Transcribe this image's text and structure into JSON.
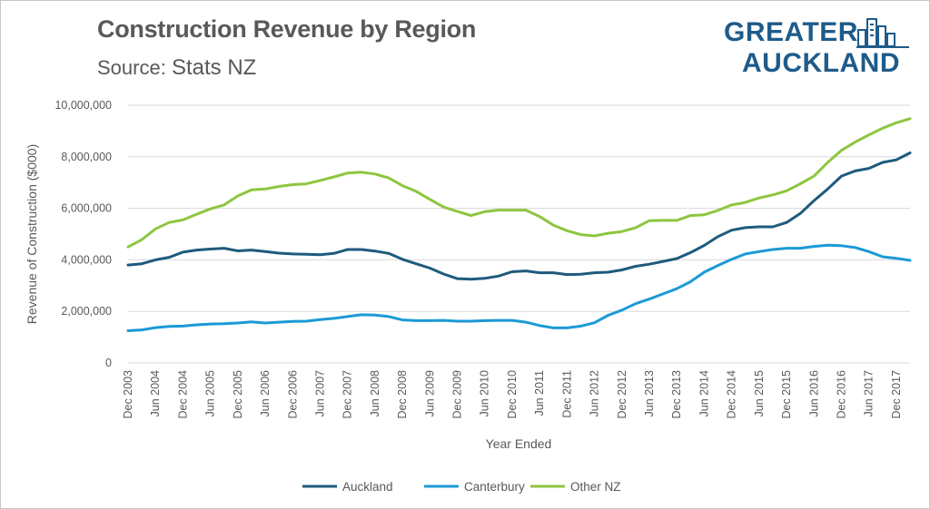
{
  "header": {
    "title": "Construction Revenue by Region",
    "subtitle_prefix": "Source:",
    "subtitle_source": "Stats NZ"
  },
  "logo": {
    "line1": "GREATER",
    "line2": "AUCKLAND",
    "color": "#1e5b8a"
  },
  "chart_data": {
    "type": "line",
    "title": "Construction Revenue by Region",
    "xlabel": "Year Ended",
    "ylabel": "Revenue of Construction ($000)",
    "ylim": [
      0,
      10000000
    ],
    "yticks": [
      0,
      2000000,
      4000000,
      6000000,
      8000000,
      10000000
    ],
    "ytick_labels": [
      "0",
      "2,000,000",
      "4,000,000",
      "6,000,000",
      "8,000,000",
      "10,000,000"
    ],
    "grid": true,
    "legend": "bottom",
    "x": [
      "Dec 2003",
      "Mar 2004",
      "Jun 2004",
      "Sep 2004",
      "Dec 2004",
      "Mar 2005",
      "Jun 2005",
      "Sep 2005",
      "Dec 2005",
      "Mar 2006",
      "Jun 2006",
      "Sep 2006",
      "Dec 2006",
      "Mar 2007",
      "Jun 2007",
      "Sep 2007",
      "Dec 2007",
      "Mar 2008",
      "Jun 2008",
      "Sep 2008",
      "Dec 2008",
      "Mar 2009",
      "Jun 2009",
      "Sep 2009",
      "Dec 2009",
      "Mar 2010",
      "Jun 2010",
      "Sep 2010",
      "Dec 2010",
      "Mar 2011",
      "Jun 2011",
      "Sep 2011",
      "Dec 2011",
      "Mar 2012",
      "Jun 2012",
      "Sep 2012",
      "Dec 2012",
      "Mar 2013",
      "Jun 2013",
      "Sep 2013",
      "Dec 2013",
      "Mar 2014",
      "Jun 2014",
      "Sep 2014",
      "Dec 2014",
      "Mar 2015",
      "Jun 2015",
      "Sep 2015",
      "Dec 2015",
      "Mar 2016",
      "Jun 2016",
      "Sep 2016",
      "Dec 2016",
      "Mar 2017",
      "Jun 2017",
      "Sep 2017",
      "Dec 2017",
      "Mar 2018"
    ],
    "tick_labels": [
      "Dec 2003",
      "Jun 2004",
      "Dec 2004",
      "Jun 2005",
      "Dec 2005",
      "Jun 2006",
      "Dec 2006",
      "Jun 2007",
      "Dec 2007",
      "Jun 2008",
      "Dec 2008",
      "Jun 2009",
      "Dec 2009",
      "Jun 2010",
      "Dec 2010",
      "Jun 2011",
      "Dec 2011",
      "Jun 2012",
      "Dec 2012",
      "Jun 2013",
      "Dec 2013",
      "Jun 2014",
      "Dec 2014",
      "Jun 2015",
      "Dec 2015",
      "Jun 2016",
      "Dec 2016",
      "Jun 2017",
      "Dec 2017"
    ],
    "series": [
      {
        "name": "Auckland",
        "color": "#1f5a7c",
        "values": [
          3800000,
          3850000,
          4000000,
          4100000,
          4300000,
          4380000,
          4420000,
          4450000,
          4350000,
          4380000,
          4320000,
          4260000,
          4230000,
          4220000,
          4200000,
          4250000,
          4400000,
          4400000,
          4340000,
          4250000,
          4020000,
          3850000,
          3680000,
          3450000,
          3270000,
          3250000,
          3280000,
          3370000,
          3540000,
          3570000,
          3500000,
          3500000,
          3430000,
          3440000,
          3500000,
          3520000,
          3610000,
          3750000,
          3830000,
          3940000,
          4050000,
          4280000,
          4560000,
          4900000,
          5150000,
          5250000,
          5280000,
          5280000,
          5450000,
          5800000,
          6300000,
          6750000,
          7250000,
          7450000,
          7550000,
          7780000,
          7880000,
          8150000
        ]
      },
      {
        "name": "Canterbury",
        "color": "#1b9ad6",
        "values": [
          1250000,
          1280000,
          1370000,
          1420000,
          1430000,
          1480000,
          1510000,
          1520000,
          1550000,
          1590000,
          1550000,
          1580000,
          1610000,
          1620000,
          1680000,
          1730000,
          1800000,
          1870000,
          1860000,
          1800000,
          1670000,
          1640000,
          1640000,
          1650000,
          1620000,
          1620000,
          1640000,
          1650000,
          1650000,
          1580000,
          1450000,
          1360000,
          1360000,
          1430000,
          1560000,
          1850000,
          2050000,
          2300000,
          2480000,
          2680000,
          2880000,
          3150000,
          3520000,
          3780000,
          4020000,
          4230000,
          4320000,
          4400000,
          4450000,
          4450000,
          4520000,
          4570000,
          4550000,
          4480000,
          4320000,
          4120000,
          4060000,
          3980000
        ]
      },
      {
        "name": "Other NZ",
        "color": "#8dc63f",
        "values": [
          4500000,
          4780000,
          5200000,
          5450000,
          5550000,
          5770000,
          5980000,
          6130000,
          6480000,
          6720000,
          6750000,
          6850000,
          6920000,
          6950000,
          7080000,
          7220000,
          7370000,
          7400000,
          7330000,
          7180000,
          6880000,
          6660000,
          6350000,
          6050000,
          5880000,
          5720000,
          5870000,
          5930000,
          5930000,
          5930000,
          5680000,
          5350000,
          5130000,
          4980000,
          4930000,
          5030000,
          5100000,
          5250000,
          5520000,
          5530000,
          5530000,
          5720000,
          5750000,
          5920000,
          6130000,
          6230000,
          6400000,
          6520000,
          6680000,
          6950000,
          7250000,
          7780000,
          8250000,
          8570000,
          8850000,
          9110000,
          9320000,
          9480000
        ]
      }
    ]
  }
}
